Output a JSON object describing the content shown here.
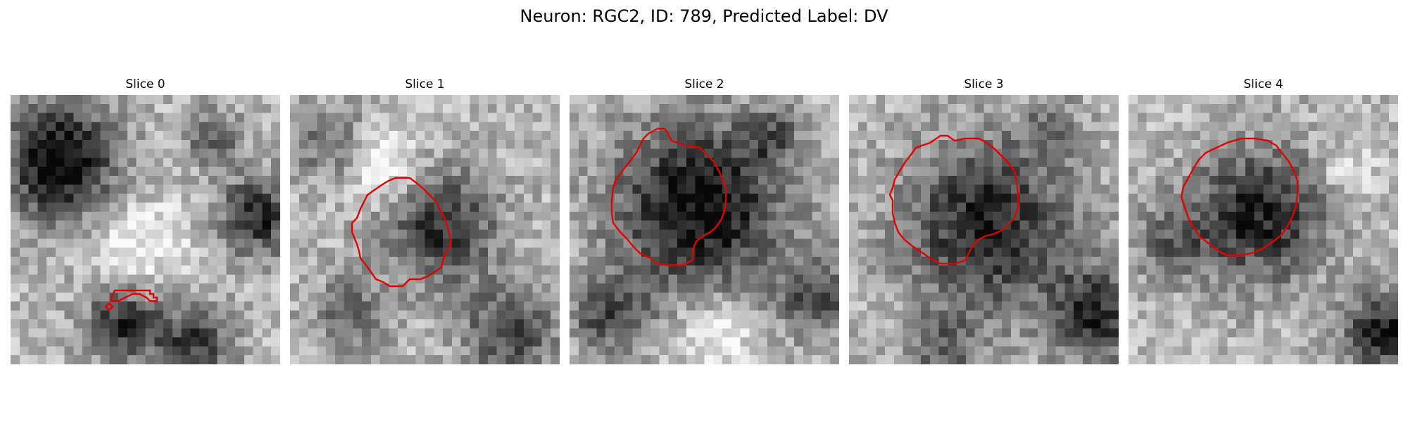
{
  "figure": {
    "suptitle": "Neuron: RGC2, ID: 789, Predicted Label: DV"
  },
  "style": {
    "contour_color": "#e00000"
  },
  "slices": [
    {
      "title": "Slice 0"
    },
    {
      "title": "Slice 1"
    },
    {
      "title": "Slice 2"
    },
    {
      "title": "Slice 3"
    },
    {
      "title": "Slice 4"
    }
  ]
}
